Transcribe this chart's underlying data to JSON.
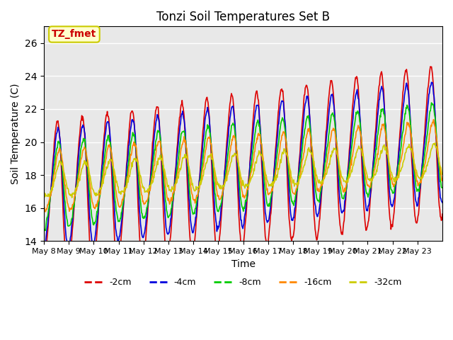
{
  "title": "Tonzi Soil Temperatures Set B",
  "xlabel": "Time",
  "ylabel": "Soil Temperature (C)",
  "ylim": [
    14,
    27
  ],
  "yticks": [
    14,
    16,
    18,
    20,
    22,
    24,
    26
  ],
  "annotation_label": "TZ_fmet",
  "annotation_color": "#cc0000",
  "annotation_bg": "#ffffcc",
  "annotation_border": "#cccc00",
  "series": [
    {
      "label": "-2cm",
      "color": "#dd0000",
      "amplitude": 4.5,
      "phase": 0.0,
      "trend": 3.5,
      "base": 16.5
    },
    {
      "label": "-4cm",
      "color": "#0000dd",
      "amplitude": 3.5,
      "phase": 0.15,
      "trend": 3.0,
      "base": 17.0
    },
    {
      "label": "-8cm",
      "color": "#00cc00",
      "amplitude": 2.5,
      "phase": 0.35,
      "trend": 2.5,
      "base": 17.2
    },
    {
      "label": "-16cm",
      "color": "#ff8800",
      "amplitude": 1.8,
      "phase": 0.6,
      "trend": 1.8,
      "base": 17.5
    },
    {
      "label": "-32cm",
      "color": "#cccc00",
      "amplitude": 1.0,
      "phase": 0.9,
      "trend": 1.2,
      "base": 17.6
    }
  ],
  "n_days": 16,
  "samples_per_day": 48,
  "xtick_labels": [
    "May 8",
    "May 9",
    "May 10",
    "May 11",
    "May 12",
    "May 13",
    "May 14",
    "May 15",
    "May 16",
    "May 17",
    "May 18",
    "May 19",
    "May 20",
    "May 21",
    "May 22",
    "May 23"
  ],
  "grid_color": "#ffffff",
  "bg_color": "#e8e8e8"
}
